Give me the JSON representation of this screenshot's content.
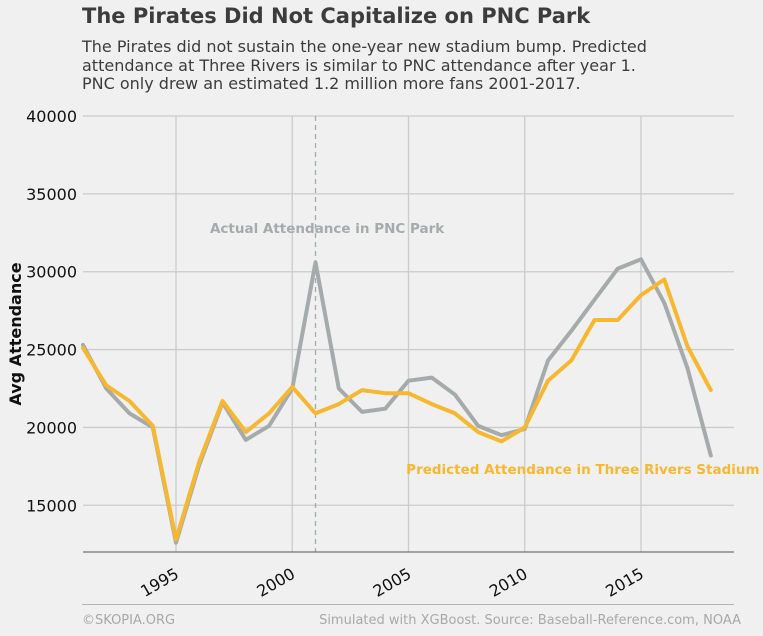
{
  "header": {
    "title": "The Pirates Did Not Capitalize on PNC Park",
    "subtitle_lines": [
      "The Pirates did not sustain the one-year new stadium bump. Predicted",
      "attendance at Three Rivers is similar to PNC attendance after year 1.",
      "PNC only drew an estimated 1.2 million more fans 2001-2017."
    ]
  },
  "footer": {
    "left": "©SKOPIA.ORG",
    "right": "Simulated with XGBoost. Source: Baseball-Reference.com, NOAA"
  },
  "colors": {
    "background": "#f0f0f0",
    "grid": "#cbcbcb",
    "actual": "#a5abab",
    "predicted": "#f7b731",
    "text": "#3c3c3c",
    "footer": "#a8a8a8"
  },
  "chart_data": {
    "type": "line",
    "title": "",
    "xlabel": "",
    "ylabel": "Avg Attendance",
    "xlim": [
      1991,
      2019
    ],
    "ylim": [
      12000,
      40000
    ],
    "xticks": [
      1995,
      2000,
      2005,
      2010,
      2015
    ],
    "yticks": [
      15000,
      20000,
      25000,
      30000,
      35000,
      40000
    ],
    "grid": true,
    "legend": "none",
    "x": [
      1991,
      1992,
      1993,
      1994,
      1995,
      1996,
      1997,
      1998,
      1999,
      2000,
      2001,
      2002,
      2003,
      2004,
      2005,
      2006,
      2007,
      2008,
      2009,
      2010,
      2011,
      2012,
      2013,
      2014,
      2015,
      2016,
      2017,
      2018
    ],
    "series": [
      {
        "key": "actual",
        "values": [
          25300,
          22500,
          20900,
          20000,
          12600,
          17600,
          21600,
          19200,
          20100,
          22500,
          30600,
          22500,
          21000,
          21200,
          23000,
          23200,
          22100,
          20100,
          19500,
          19900,
          24300,
          26200,
          28200,
          30200,
          30800,
          28000,
          23800,
          18200
        ]
      },
      {
        "key": "predicted",
        "values": [
          25100,
          22700,
          21700,
          20100,
          12800,
          17800,
          21700,
          19700,
          20900,
          22600,
          20900,
          21500,
          22400,
          22200,
          22200,
          21500,
          20900,
          19700,
          19100,
          20000,
          23000,
          24300,
          26900,
          26900,
          28500,
          29500,
          25200,
          22400
        ]
      }
    ],
    "vline": 2001,
    "annotations": [
      {
        "key": "actual",
        "text": "Actual Attendance in PNC Park",
        "x": 2001.5,
        "y": 32500
      },
      {
        "key": "predicted",
        "text": "Predicted Attendance in Three Rivers Stadium",
        "x": 2012.5,
        "y": 17000
      }
    ]
  }
}
